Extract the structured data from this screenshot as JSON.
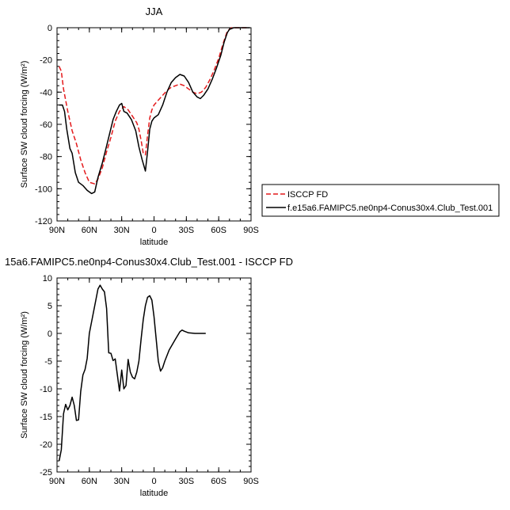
{
  "chart_data": [
    {
      "type": "line",
      "title": "JJA",
      "xlabel": "latitude",
      "ylabel": "Surface SW cloud forcing (W/m²)",
      "xlim": [
        90,
        -90
      ],
      "ylim": [
        -120,
        0
      ],
      "x_ticks": [
        {
          "value": 90,
          "label": "90N"
        },
        {
          "value": 60,
          "label": "60N"
        },
        {
          "value": 30,
          "label": "30N"
        },
        {
          "value": 0,
          "label": "0"
        },
        {
          "value": -30,
          "label": "30S"
        },
        {
          "value": -60,
          "label": "60S"
        },
        {
          "value": -90,
          "label": "90S"
        }
      ],
      "y_ticks": [
        0,
        -20,
        -40,
        -60,
        -80,
        -100,
        -120
      ],
      "legend_position": "right",
      "series": [
        {
          "name": "ISCCP FD",
          "color": "#e41a1c",
          "dash": "dashed",
          "points": [
            [
              88,
              -24
            ],
            [
              86,
              -27
            ],
            [
              84,
              -38
            ],
            [
              80,
              -52
            ],
            [
              76,
              -64
            ],
            [
              72,
              -72
            ],
            [
              68,
              -82
            ],
            [
              64,
              -90
            ],
            [
              60,
              -96
            ],
            [
              55,
              -97
            ],
            [
              52,
              -94
            ],
            [
              48,
              -87
            ],
            [
              44,
              -77
            ],
            [
              40,
              -68
            ],
            [
              36,
              -58
            ],
            [
              32,
              -52
            ],
            [
              28,
              -49
            ],
            [
              24,
              -51
            ],
            [
              20,
              -55
            ],
            [
              16,
              -59
            ],
            [
              14,
              -63
            ],
            [
              12,
              -70
            ],
            [
              10,
              -78
            ],
            [
              8,
              -79
            ],
            [
              6,
              -67
            ],
            [
              4,
              -56
            ],
            [
              2,
              -51
            ],
            [
              0,
              -48
            ],
            [
              -4,
              -45
            ],
            [
              -8,
              -42
            ],
            [
              -12,
              -39
            ],
            [
              -16,
              -37
            ],
            [
              -20,
              -36
            ],
            [
              -24,
              -35
            ],
            [
              -28,
              -36
            ],
            [
              -32,
              -38
            ],
            [
              -36,
              -40
            ],
            [
              -40,
              -41
            ],
            [
              -44,
              -40
            ],
            [
              -48,
              -37
            ],
            [
              -52,
              -32
            ],
            [
              -56,
              -26
            ],
            [
              -60,
              -19
            ],
            [
              -64,
              -10
            ],
            [
              -68,
              -2
            ],
            [
              -72,
              0
            ],
            [
              -76,
              0
            ],
            [
              -80,
              0
            ],
            [
              -84,
              0
            ],
            [
              -88,
              0
            ]
          ]
        },
        {
          "name": "f.e15a6.FAMIPC5.ne0np4-Conus30x4.Club_Test.001",
          "color": "#000000",
          "dash": "solid",
          "points": [
            [
              88,
              -48
            ],
            [
              85,
              -48
            ],
            [
              83,
              -52
            ],
            [
              81,
              -63
            ],
            [
              78,
              -75
            ],
            [
              76,
              -78
            ],
            [
              73,
              -90
            ],
            [
              70,
              -96
            ],
            [
              66,
              -98
            ],
            [
              62,
              -101
            ],
            [
              58,
              -103
            ],
            [
              55,
              -102
            ],
            [
              52,
              -93
            ],
            [
              48,
              -84
            ],
            [
              45,
              -76
            ],
            [
              42,
              -68
            ],
            [
              38,
              -57
            ],
            [
              35,
              -52
            ],
            [
              32,
              -48
            ],
            [
              30,
              -47
            ],
            [
              28,
              -52
            ],
            [
              25,
              -53
            ],
            [
              21,
              -57
            ],
            [
              17,
              -64
            ],
            [
              14,
              -74
            ],
            [
              11,
              -82
            ],
            [
              8,
              -89
            ],
            [
              6,
              -77
            ],
            [
              4,
              -63
            ],
            [
              2,
              -58
            ],
            [
              0,
              -56
            ],
            [
              -4,
              -54
            ],
            [
              -8,
              -48
            ],
            [
              -12,
              -40
            ],
            [
              -16,
              -34
            ],
            [
              -20,
              -31
            ],
            [
              -24,
              -29
            ],
            [
              -28,
              -30
            ],
            [
              -32,
              -34
            ],
            [
              -36,
              -40
            ],
            [
              -40,
              -43
            ],
            [
              -43,
              -44
            ],
            [
              -46,
              -42
            ],
            [
              -50,
              -38
            ],
            [
              -54,
              -32
            ],
            [
              -58,
              -25
            ],
            [
              -62,
              -17
            ],
            [
              -65,
              -9
            ],
            [
              -68,
              -3
            ],
            [
              -70,
              -1
            ],
            [
              -74,
              0
            ],
            [
              -80,
              0
            ],
            [
              -86,
              0
            ],
            [
              -89,
              0
            ]
          ]
        }
      ]
    },
    {
      "type": "line",
      "title": "15a6.FAMIPC5.ne0np4-Conus30x4.Club_Test.001 - ISCCP FD",
      "xlabel": "latitude",
      "ylabel": "Surface SW cloud forcing (W/m²)",
      "xlim": [
        90,
        -90
      ],
      "ylim": [
        -25,
        10
      ],
      "x_ticks": [
        {
          "value": 90,
          "label": "90N"
        },
        {
          "value": 60,
          "label": "60N"
        },
        {
          "value": 30,
          "label": "30N"
        },
        {
          "value": 0,
          "label": "0"
        },
        {
          "value": -30,
          "label": "30S"
        },
        {
          "value": -60,
          "label": "60S"
        },
        {
          "value": -90,
          "label": "90S"
        }
      ],
      "y_ticks": [
        10,
        5,
        0,
        -5,
        -10,
        -15,
        -20,
        -25
      ],
      "series": [
        {
          "color": "#000000",
          "dash": "solid",
          "points": [
            [
              88,
              -23
            ],
            [
              86,
              -21
            ],
            [
              84,
              -14.5
            ],
            [
              82,
              -12.8
            ],
            [
              80,
              -13.8
            ],
            [
              78,
              -13
            ],
            [
              76,
              -11.5
            ],
            [
              74,
              -13
            ],
            [
              72,
              -15.7
            ],
            [
              70,
              -15.6
            ],
            [
              68,
              -10.5
            ],
            [
              66,
              -7.5
            ],
            [
              64,
              -6.5
            ],
            [
              62,
              -4.5
            ],
            [
              60,
              0
            ],
            [
              57,
              3
            ],
            [
              54,
              6
            ],
            [
              52,
              8
            ],
            [
              50,
              8.7
            ],
            [
              48,
              8
            ],
            [
              46,
              7.5
            ],
            [
              44,
              4.5
            ],
            [
              42,
              -3.5
            ],
            [
              40,
              -3.6
            ],
            [
              38,
              -4.9
            ],
            [
              36,
              -4.6
            ],
            [
              34,
              -7.5
            ],
            [
              32,
              -10.4
            ],
            [
              30,
              -6.6
            ],
            [
              28,
              -10
            ],
            [
              26,
              -9.4
            ],
            [
              24,
              -4.7
            ],
            [
              22,
              -7
            ],
            [
              20,
              -7.9
            ],
            [
              18,
              -8.2
            ],
            [
              16,
              -7
            ],
            [
              14,
              -5
            ],
            [
              12,
              -1
            ],
            [
              10,
              2.5
            ],
            [
              8,
              5
            ],
            [
              6,
              6.5
            ],
            [
              4,
              6.8
            ],
            [
              2,
              6
            ],
            [
              0,
              3
            ],
            [
              -2,
              -1
            ],
            [
              -4,
              -5
            ],
            [
              -6,
              -6.8
            ],
            [
              -8,
              -6.2
            ],
            [
              -10,
              -5
            ],
            [
              -14,
              -3
            ],
            [
              -20,
              -1
            ],
            [
              -24,
              0.3
            ],
            [
              -26,
              0.6
            ],
            [
              -28,
              0.4
            ],
            [
              -32,
              0.1
            ],
            [
              -38,
              0
            ],
            [
              -44,
              0
            ],
            [
              -48,
              0
            ]
          ]
        }
      ]
    }
  ]
}
